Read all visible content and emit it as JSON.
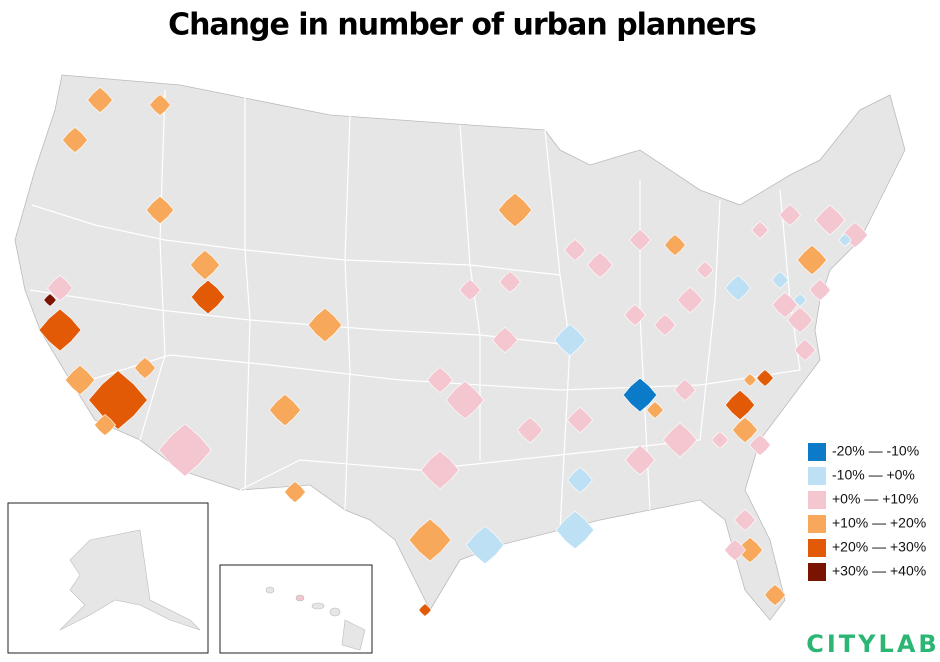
{
  "title": "Change in number of urban planners",
  "legend": [
    {
      "label": "-20% — -10%",
      "color": "#0a7ac9"
    },
    {
      "label": "-10% — +0%",
      "color": "#bde0f5"
    },
    {
      "label": "+0% — +10%",
      "color": "#f3c6d0"
    },
    {
      "label": "+10% — +20%",
      "color": "#f8a85a"
    },
    {
      "label": "+20% — +30%",
      "color": "#e35a06"
    },
    {
      "label": "+30% — +40%",
      "color": "#7a1400"
    }
  ],
  "brand": "CITYLAB"
}
